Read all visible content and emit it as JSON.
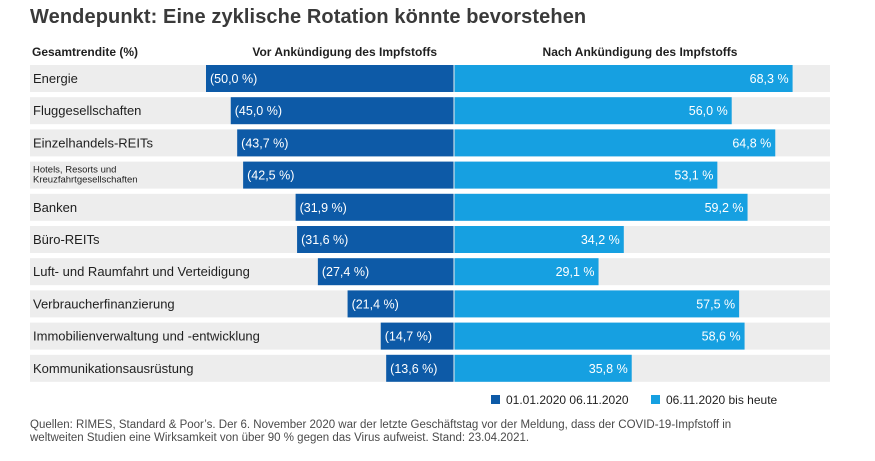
{
  "chart_data": {
    "type": "bar",
    "title": "Wendepunkt: Eine zyklische Rotation könnte bevorstehen",
    "column_headers": {
      "label": "Gesamtrendite (%)",
      "before": "Vor Ankündigung des Impfstoffs",
      "after": "Nach Ankündigung des Impfstoffs"
    },
    "categories": [
      "Energie",
      "Fluggesellschaften",
      "Einzelhandels-REITs",
      "Hotels, Resorts und Kreuzfahrtgesellschaften",
      "Banken",
      "Büro-REITs",
      "Luft- und Raumfahrt und Verteidigung",
      "Verbraucherfinanzierung",
      "Immobilienverwaltung und -entwicklung",
      "Kommunikationsausrüstung"
    ],
    "category_lines": [
      [
        "Energie"
      ],
      [
        "Fluggesellschaften"
      ],
      [
        "Einzelhandels-REITs"
      ],
      [
        "Hotels, Resorts und",
        "Kreuzfahrtgesellschaften"
      ],
      [
        "Banken"
      ],
      [
        "Büro-REITs"
      ],
      [
        "Luft- und Raumfahrt und Verteidigung"
      ],
      [
        "Verbraucherfinanzierung"
      ],
      [
        "Immobilienverwaltung und -entwicklung"
      ],
      [
        "Kommunikationsausrüstung"
      ]
    ],
    "series": [
      {
        "name": "01.01.2020  06.11.2020",
        "color": "#0d5aa7",
        "values": [
          -50.0,
          -45.0,
          -43.7,
          -42.5,
          -31.9,
          -31.6,
          -27.4,
          -21.4,
          -14.7,
          -13.6
        ],
        "labels": [
          "(50,0 %)",
          "(45,0 %)",
          "(43,7 %)",
          "(42,5 %)",
          "(31,9 %)",
          "(31,6 %)",
          "(27,4 %)",
          "(21,4 %)",
          "(14,7 %)",
          "(13,6 %)"
        ]
      },
      {
        "name": "06.11.2020 bis heute",
        "color": "#16a0e1",
        "values": [
          68.3,
          56.0,
          64.8,
          53.1,
          59.2,
          34.2,
          29.1,
          57.5,
          58.6,
          35.8
        ],
        "labels": [
          "68,3 %",
          "56,0 %",
          "64,8 %",
          "53,1 %",
          "59,2 %",
          "34,2 %",
          "29,1 %",
          "57,5 %",
          "58,6 %",
          "35,8 %"
        ]
      }
    ],
    "xlim": [
      -51,
      70
    ],
    "row_background": "#ededed"
  },
  "footer": {
    "line1": "Quellen: RIMES, Standard & Poor’s. Der 6. November 2020 war der letzte Geschäftstag vor der Meldung, dass der COVID-19-Impfstoff in",
    "line2": "weltweiten Studien eine Wirksamkeit von über 90 % gegen das Virus aufweist. Stand: 23.04.2021."
  }
}
